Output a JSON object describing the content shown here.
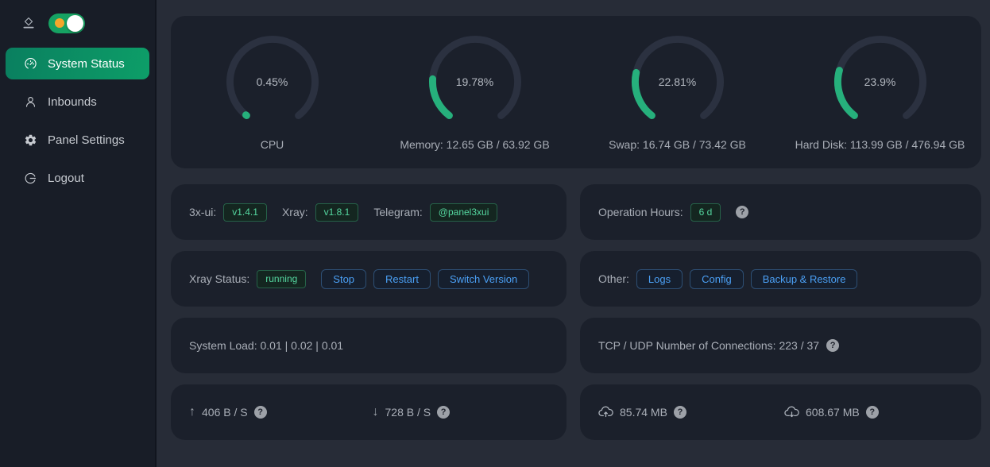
{
  "colors": {
    "page_bg": "#272c37",
    "card_bg": "#1b202b",
    "sidebar_bg": "#181d27",
    "accent_green": "#0d9e68",
    "gauge_green": "#26b07c",
    "tag_green_text": "#55d8a0",
    "button_blue": "#4ba0f5",
    "toggle_orange": "#f5a62b"
  },
  "sidebar": {
    "items": [
      {
        "label": "System Status",
        "icon": "dashboard-icon",
        "active": true
      },
      {
        "label": "Inbounds",
        "icon": "user-icon",
        "active": false
      },
      {
        "label": "Panel Settings",
        "icon": "gear-icon",
        "active": false
      },
      {
        "label": "Logout",
        "icon": "logout-icon",
        "active": false
      }
    ]
  },
  "gauges": [
    {
      "percent": 0.45,
      "percent_label": "0.45%",
      "label": "CPU"
    },
    {
      "percent": 19.78,
      "percent_label": "19.78%",
      "label": "Memory: 12.65 GB / 63.92 GB"
    },
    {
      "percent": 22.81,
      "percent_label": "22.81%",
      "label": "Swap: 16.74 GB / 73.42 GB"
    },
    {
      "percent": 23.9,
      "percent_label": "23.9%",
      "label": "Hard Disk: 113.99 GB / 476.94 GB"
    }
  ],
  "cards": {
    "versions": {
      "ui_label": "3x-ui:",
      "ui_tag": "v1.4.1",
      "xray_label": "Xray:",
      "xray_tag": "v1.8.1",
      "tg_label": "Telegram:",
      "tg_tag": "@panel3xui"
    },
    "operation": {
      "label": "Operation Hours:",
      "tag": "6 d"
    },
    "xray_status": {
      "label": "Xray Status:",
      "tag": "running",
      "buttons": [
        "Stop",
        "Restart",
        "Switch Version"
      ]
    },
    "other": {
      "label": "Other:",
      "buttons": [
        "Logs",
        "Config",
        "Backup & Restore"
      ]
    },
    "system_load": {
      "text": "System Load: 0.01 | 0.02 | 0.01"
    },
    "connections": {
      "text": "TCP / UDP Number of Connections: 223 / 37"
    },
    "net_speed": {
      "up": "406 B / S",
      "down": "728 B / S"
    },
    "net_total": {
      "sent": "85.74 MB",
      "received": "608.67 MB"
    }
  }
}
